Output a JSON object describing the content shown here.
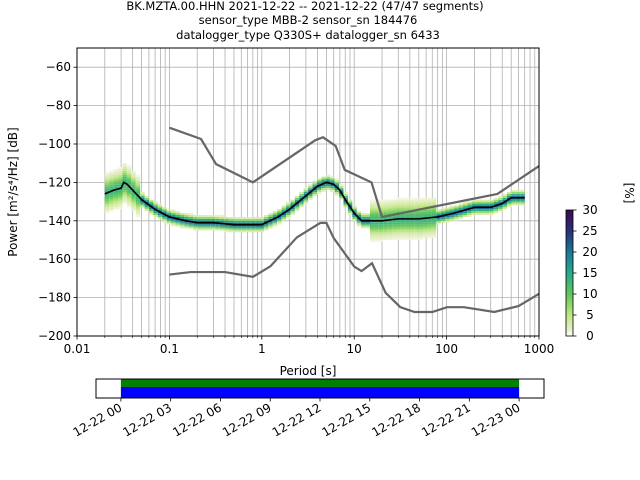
{
  "title_lines": [
    "BK.MZTA.00.HHN   2021-12-22 -- 2021-12-22  (47/47 segments)",
    "sensor_type MBB-2 sensor_sn 184476",
    "datalogger_type Q330S+ datalogger_sn 6433"
  ],
  "chart_data": {
    "type": "heatmap",
    "xlabel": "Period [s]",
    "ylabel": "Power [m²/s⁴/Hz] [dB]",
    "xscale": "log",
    "xlim": [
      0.01,
      1000
    ],
    "ylim": [
      -200,
      -50
    ],
    "x_ticks": [
      0.01,
      0.1,
      1,
      10,
      100,
      1000
    ],
    "x_tick_labels": [
      "0.01",
      "0.1",
      "1",
      "10",
      "100",
      "1000"
    ],
    "y_ticks": [
      -200,
      -180,
      -160,
      -140,
      -120,
      -100,
      -80,
      -60
    ],
    "y_tick_labels": [
      "−200",
      "−180",
      "−160",
      "−140",
      "−120",
      "−100",
      "−80",
      "−60"
    ],
    "grid": true,
    "colorbar": {
      "label": "[%]",
      "range": [
        0,
        30
      ],
      "ticks": [
        0,
        5,
        10,
        15,
        20,
        25,
        30
      ],
      "tick_labels": [
        "0",
        "5",
        "10",
        "15",
        "20",
        "25",
        "30"
      ],
      "colormap": "pqlx"
    },
    "mode_curve": {
      "name": "mode",
      "color": "#000000",
      "points": [
        [
          0.02,
          -126
        ],
        [
          0.025,
          -124
        ],
        [
          0.03,
          -123
        ],
        [
          0.032,
          -120
        ],
        [
          0.035,
          -121
        ],
        [
          0.04,
          -124
        ],
        [
          0.05,
          -129
        ],
        [
          0.07,
          -134
        ],
        [
          0.1,
          -138
        ],
        [
          0.15,
          -140
        ],
        [
          0.2,
          -141
        ],
        [
          0.3,
          -141
        ],
        [
          0.5,
          -142
        ],
        [
          0.8,
          -142
        ],
        [
          1,
          -142
        ],
        [
          1.5,
          -138
        ],
        [
          2,
          -134
        ],
        [
          3,
          -127
        ],
        [
          4,
          -122
        ],
        [
          5,
          -120
        ],
        [
          6,
          -121
        ],
        [
          7,
          -124
        ],
        [
          8,
          -129
        ],
        [
          10,
          -136
        ],
        [
          12,
          -140
        ],
        [
          15,
          -140
        ],
        [
          20,
          -140
        ],
        [
          30,
          -139
        ],
        [
          50,
          -139
        ],
        [
          80,
          -138
        ],
        [
          120,
          -136
        ],
        [
          200,
          -133
        ],
        [
          300,
          -133
        ],
        [
          400,
          -131
        ],
        [
          500,
          -128
        ],
        [
          700,
          -128
        ]
      ]
    },
    "nhnm": {
      "name": "NHNM",
      "color": "#666666",
      "points": [
        [
          0.1,
          -91.5
        ],
        [
          0.22,
          -97.4
        ],
        [
          0.32,
          -110.5
        ],
        [
          0.8,
          -120
        ],
        [
          3.8,
          -98
        ],
        [
          4.6,
          -96.5
        ],
        [
          6.3,
          -101
        ],
        [
          7.9,
          -113.5
        ],
        [
          15.4,
          -120
        ],
        [
          20,
          -138
        ],
        [
          354.8,
          -126
        ],
        [
          1000,
          -111.5
        ]
      ]
    },
    "nlnm": {
      "name": "NLNM",
      "color": "#666666",
      "points": [
        [
          0.1,
          -168
        ],
        [
          0.17,
          -166.7
        ],
        [
          0.4,
          -166.7
        ],
        [
          0.8,
          -169.2
        ],
        [
          1.24,
          -163.7
        ],
        [
          2.4,
          -148.6
        ],
        [
          4.3,
          -141.1
        ],
        [
          5,
          -141.1
        ],
        [
          6,
          -149
        ],
        [
          10,
          -163.8
        ],
        [
          12,
          -166.2
        ],
        [
          15.6,
          -162.1
        ],
        [
          21.9,
          -177.5
        ],
        [
          31.6,
          -185
        ],
        [
          45,
          -187.5
        ],
        [
          70,
          -187.5
        ],
        [
          101,
          -185
        ],
        [
          154,
          -185
        ],
        [
          328,
          -187.5
        ],
        [
          600,
          -184.4
        ],
        [
          1000,
          -178
        ]
      ]
    },
    "timeline": {
      "tick_labels": [
        "12-22 00",
        "12-22 03",
        "12-22 06",
        "12-22 09",
        "12-22 12",
        "12-22 15",
        "12-22 18",
        "12-22 21",
        "12-23 00"
      ],
      "range_hours": [
        -1.5,
        25.5
      ],
      "coverage_hours": [
        0,
        24
      ],
      "colors": [
        "#008000",
        "#0000ff"
      ]
    }
  }
}
